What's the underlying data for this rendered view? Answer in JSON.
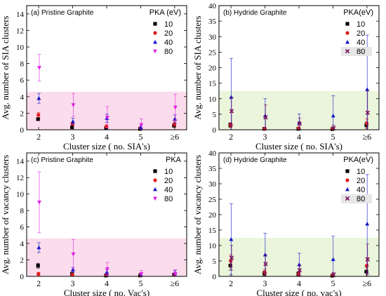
{
  "chart_data": [
    {
      "type": "scatter",
      "title": "(a) Pristine Graphite",
      "xlabel": "Cluster size ( no. SIA's)",
      "ylabel": "Avg. number of SIA clusters",
      "categories": [
        "2",
        "3",
        "4",
        "5",
        "≥6"
      ],
      "ylim": [
        0,
        15
      ],
      "yticks": [
        "0",
        "2",
        "4",
        "6",
        "8",
        "10",
        "12",
        "14"
      ],
      "legend_title": "PKA (eV)",
      "legend_placement": "top-right",
      "highlight": {
        "y0": 0,
        "y1": 4.6,
        "color": "#fbdcec"
      },
      "series": [
        {
          "name": "10",
          "marker": "square",
          "color": "#000000",
          "values": [
            1.3,
            0.3,
            0.2,
            0.1,
            0.5
          ],
          "err": [
            0.2,
            0.1,
            0.1,
            0.1,
            0.2
          ]
        },
        {
          "name": "20",
          "marker": "circle",
          "color": "#e01b1b",
          "values": [
            1.8,
            0.7,
            0.4,
            0.2,
            0.7
          ],
          "err": [
            0.3,
            0.2,
            0.2,
            0.1,
            0.3
          ]
        },
        {
          "name": "40",
          "marker": "triangle-up",
          "color": "#1515c8",
          "values": [
            3.8,
            1.0,
            1.4,
            0.3,
            1.3
          ],
          "err": [
            0.6,
            0.4,
            0.5,
            0.2,
            0.5
          ]
        },
        {
          "name": "80",
          "marker": "triangle-down",
          "color": "#e020e0",
          "values": [
            7.5,
            3.0,
            1.5,
            0.6,
            2.7
          ],
          "err": [
            1.6,
            1.4,
            1.3,
            0.7,
            1.6
          ]
        }
      ]
    },
    {
      "type": "scatter",
      "title": "(b) Hydride Graphite",
      "xlabel": "Cluster size ( no. SIA's)",
      "ylabel": "Avg. number of SIA clusters",
      "categories": [
        "2",
        "3",
        "4",
        "5",
        "≥6"
      ],
      "ylim": [
        0,
        40
      ],
      "yticks": [
        "0",
        "5",
        "10",
        "15",
        "20",
        "25",
        "30",
        "35",
        "40"
      ],
      "legend_title": "PKA(eV)",
      "legend_placement": "top-right",
      "highlight": {
        "y0": 0,
        "y1": 12.5,
        "color": "#eaf5dc"
      },
      "series": [
        {
          "name": "10",
          "marker": "square",
          "color": "#000000",
          "values": [
            1.5,
            0.3,
            0.3,
            0.2,
            1.5
          ],
          "err": [
            0.7,
            0.3,
            0.3,
            0.2,
            1.0
          ]
        },
        {
          "name": "20",
          "marker": "circle",
          "color": "#e01b1b",
          "values": [
            1.5,
            0.3,
            0.5,
            0.3,
            2.0
          ],
          "err": [
            0.8,
            0.4,
            0.4,
            0.3,
            1.5
          ]
        },
        {
          "name": "40",
          "marker": "triangle-up",
          "color": "#1515c8",
          "values": [
            10.5,
            4.5,
            2.3,
            4.5,
            13.0
          ],
          "err": [
            12.5,
            5.5,
            2.8,
            6.5,
            17.5
          ]
        },
        {
          "name": "80",
          "marker": "x",
          "color": "#7a0f5a",
          "values": [
            6.0,
            4.0,
            2.0,
            0.5,
            5.5
          ],
          "err": [
            4.5,
            4.0,
            1.8,
            1.0,
            7.0
          ]
        }
      ]
    },
    {
      "type": "scatter",
      "title": "(c) Pristine Graphite",
      "xlabel": "Cluster size ( no. Vac's)",
      "ylabel": "Avg. number of vacancy clusters",
      "categories": [
        "2",
        "3",
        "4",
        "5",
        "≥6"
      ],
      "ylim": [
        0,
        15
      ],
      "yticks": [
        "0",
        "2",
        "4",
        "6",
        "8",
        "10",
        "12",
        "14"
      ],
      "legend_title": "PKA",
      "legend_placement": "top-right",
      "highlight": {
        "y0": 0,
        "y1": 4.6,
        "color": "#fbdcec"
      },
      "series": [
        {
          "name": "10",
          "marker": "square",
          "color": "#000000",
          "values": [
            1.3,
            0.3,
            0.1,
            0.1,
            0.2
          ],
          "err": [
            0.3,
            0.2,
            0.1,
            0.1,
            0.2
          ]
        },
        {
          "name": "20",
          "marker": "circle",
          "color": "#e01b1b",
          "values": [
            0.3,
            0.2,
            0.2,
            0.1,
            0.2
          ],
          "err": [
            0.2,
            0.2,
            0.1,
            0.1,
            0.2
          ]
        },
        {
          "name": "40",
          "marker": "triangle-up",
          "color": "#1515c8",
          "values": [
            3.5,
            0.8,
            0.5,
            0.2,
            0.4
          ],
          "err": [
            0.6,
            0.3,
            0.3,
            0.2,
            0.3
          ]
        },
        {
          "name": "80",
          "marker": "triangle-down",
          "color": "#e020e0",
          "values": [
            9.0,
            2.7,
            0.9,
            0.3,
            0.3
          ],
          "err": [
            3.7,
            1.8,
            0.8,
            0.4,
            0.5
          ]
        }
      ]
    },
    {
      "type": "scatter",
      "title": "(d) Hydride Graphite",
      "xlabel": "Cluster size ( no. vac's)",
      "ylabel": "Avg. number of vacancy clusters",
      "categories": [
        "2",
        "3",
        "4",
        "5",
        "≥6"
      ],
      "ylim": [
        0,
        40
      ],
      "yticks": [
        "0",
        "5",
        "10",
        "15",
        "20",
        "25",
        "30",
        "35",
        "40"
      ],
      "legend_title": "PKA(eV)",
      "legend_placement": "top-right",
      "highlight": {
        "y0": 0,
        "y1": 12.5,
        "color": "#eaf5dc"
      },
      "series": [
        {
          "name": "10",
          "marker": "square",
          "color": "#000000",
          "values": [
            3.5,
            1.0,
            0.8,
            0.2,
            1.5
          ],
          "err": [
            1.5,
            0.8,
            0.6,
            0.3,
            1.5
          ]
        },
        {
          "name": "20",
          "marker": "circle",
          "color": "#e01b1b",
          "values": [
            5.0,
            1.3,
            0.8,
            0.3,
            3.5
          ],
          "err": [
            2.0,
            1.0,
            0.8,
            0.4,
            2.5
          ]
        },
        {
          "name": "40",
          "marker": "triangle-up",
          "color": "#1515c8",
          "values": [
            12.0,
            7.0,
            3.8,
            5.5,
            17.0
          ],
          "err": [
            11.5,
            7.0,
            3.7,
            7.5,
            16.0
          ]
        },
        {
          "name": "80",
          "marker": "x",
          "color": "#7a0f5a",
          "values": [
            6.0,
            4.0,
            2.0,
            0.5,
            5.5
          ],
          "err": [
            4.0,
            3.0,
            1.8,
            0.8,
            5.0
          ]
        }
      ]
    }
  ]
}
